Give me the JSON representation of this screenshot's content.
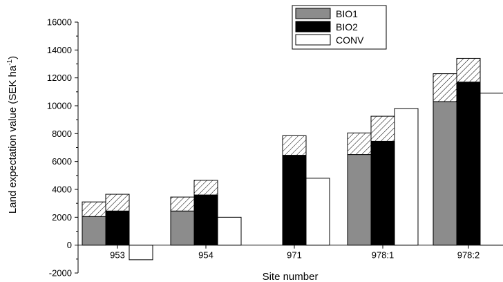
{
  "chart_data": {
    "type": "bar",
    "subtype": "grouped-stacked",
    "title": "",
    "xlabel": "Site number",
    "ylabel_main": "Land expectation value (SEK ha",
    "ylabel_sup": "-1",
    "ylabel_close": ")",
    "ylim": [
      -2000,
      16000
    ],
    "yticks": [
      -2000,
      0,
      2000,
      4000,
      6000,
      8000,
      10000,
      12000,
      14000,
      16000
    ],
    "categories": [
      "953",
      "954",
      "971",
      "978:1",
      "978:2"
    ],
    "series": [
      {
        "name": "BIO1",
        "color": "#8c8c8c",
        "base": [
          2050,
          2450,
          null,
          6500,
          10300
        ],
        "total": [
          3100,
          3450,
          null,
          8050,
          12300
        ]
      },
      {
        "name": "BIO2",
        "color": "#000000",
        "base": [
          2450,
          3600,
          6450,
          7450,
          11700
        ],
        "total": [
          3650,
          4650,
          7850,
          9250,
          13400
        ]
      },
      {
        "name": "CONV",
        "color": "#ffffff",
        "base": [
          -1050,
          2000,
          4800,
          9800,
          10900
        ],
        "total": [
          -1050,
          2000,
          4800,
          9800,
          10900
        ]
      }
    ],
    "hatch_meaning_shown": false,
    "legend_position": "top-right",
    "grid": false
  }
}
